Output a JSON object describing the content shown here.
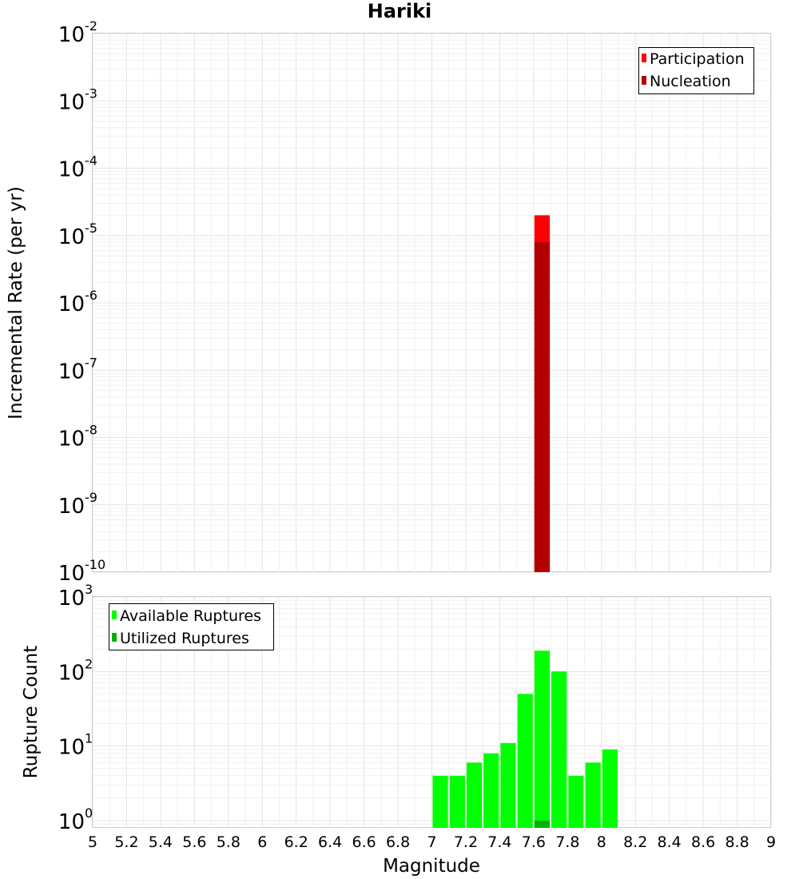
{
  "title": "Hariki",
  "xlabel": "Magnitude",
  "chart_data": [
    {
      "type": "bar",
      "title": "Hariki",
      "xlabel": "Magnitude",
      "ylabel": "Incremental Rate (per yr)",
      "yscale": "log",
      "ylim": [
        1e-10,
        0.01
      ],
      "xlim": [
        5,
        9
      ],
      "bar_width": 0.1,
      "grid": true,
      "legend_position": "top-right",
      "x_ticks": [
        "5",
        "5.2",
        "5.4",
        "5.6",
        "5.8",
        "6",
        "6.2",
        "6.4",
        "6.6",
        "6.8",
        "7",
        "7.2",
        "7.4",
        "7.6",
        "7.8",
        "8",
        "8.2",
        "8.4",
        "8.6",
        "8.8",
        "9"
      ],
      "y_ticks": [
        {
          "base": "10",
          "exp": "-10"
        },
        {
          "base": "10",
          "exp": "-9"
        },
        {
          "base": "10",
          "exp": "-8"
        },
        {
          "base": "10",
          "exp": "-7"
        },
        {
          "base": "10",
          "exp": "-6"
        },
        {
          "base": "10",
          "exp": "-5"
        },
        {
          "base": "10",
          "exp": "-4"
        },
        {
          "base": "10",
          "exp": "-3"
        },
        {
          "base": "10",
          "exp": "-2"
        }
      ],
      "series": [
        {
          "name": "Participation",
          "color": "#ff0000",
          "x": [
            7.65
          ],
          "values": [
            2e-05
          ]
        },
        {
          "name": "Nucleation",
          "color": "#b20000",
          "x": [
            7.65
          ],
          "values": [
            8e-06
          ]
        }
      ]
    },
    {
      "type": "bar",
      "xlabel": "Magnitude",
      "ylabel": "Rupture Count",
      "yscale": "log",
      "ylim": [
        0.8,
        1000
      ],
      "xlim": [
        5,
        9
      ],
      "bar_width": 0.1,
      "grid": true,
      "legend_position": "top-left",
      "y_ticks": [
        {
          "base": "10",
          "exp": "0",
          "value": 1
        },
        {
          "base": "10",
          "exp": "1",
          "value": 10
        },
        {
          "base": "10",
          "exp": "2",
          "value": 100
        },
        {
          "base": "10",
          "exp": "3",
          "value": 1000
        }
      ],
      "series": [
        {
          "name": "Available Ruptures",
          "color": "#00ff00",
          "x": [
            7.05,
            7.15,
            7.25,
            7.35,
            7.45,
            7.55,
            7.65,
            7.75,
            7.85,
            7.95,
            8.05
          ],
          "values": [
            4,
            4,
            6,
            8,
            11,
            50,
            190,
            100,
            4,
            6,
            9
          ]
        },
        {
          "name": "Utilized Ruptures",
          "color": "#00b200",
          "x": [
            7.65
          ],
          "values": [
            1
          ]
        }
      ]
    }
  ]
}
